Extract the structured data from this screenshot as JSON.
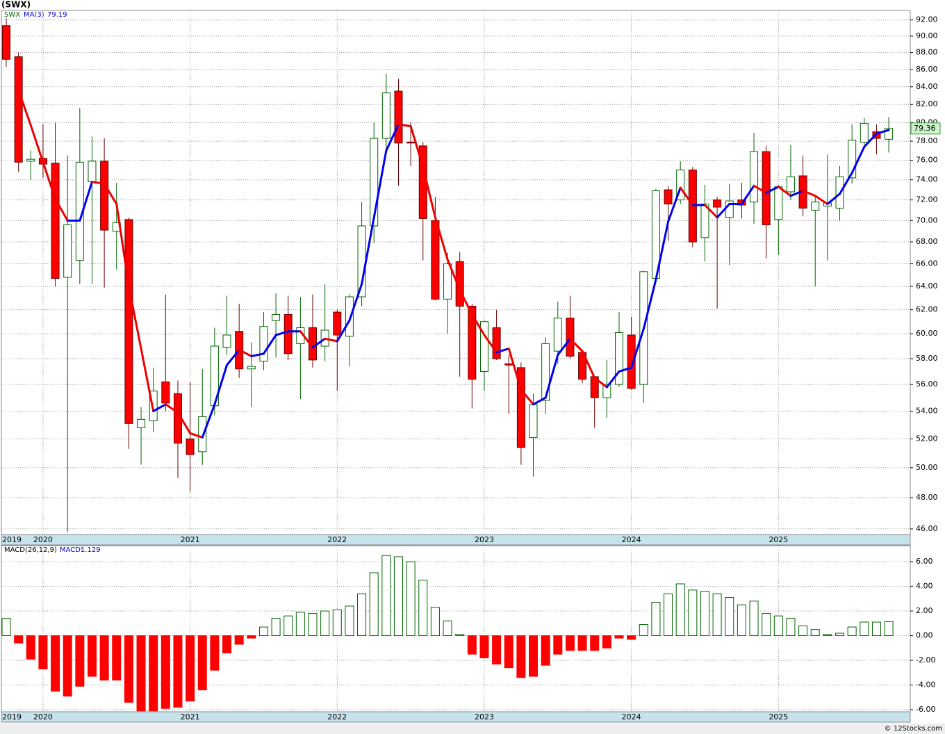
{
  "chart_data": [
    {
      "type": "candlestick",
      "title": "(SWX)",
      "categories": [
        "2019",
        null,
        null,
        "2020",
        null,
        null,
        null,
        null,
        null,
        null,
        null,
        null,
        null,
        null,
        null,
        "2021",
        null,
        null,
        null,
        null,
        null,
        null,
        null,
        null,
        null,
        null,
        null,
        "2022",
        null,
        null,
        null,
        null,
        null,
        null,
        null,
        null,
        null,
        null,
        null,
        "2023",
        null,
        null,
        null,
        null,
        null,
        null,
        null,
        null,
        null,
        null,
        null,
        "2024",
        null,
        null,
        null,
        null,
        null,
        null,
        null,
        null,
        null,
        null,
        null,
        "2025",
        null,
        null,
        null,
        null,
        null,
        null,
        null,
        null,
        null
      ],
      "series": [
        {
          "name": "SWX",
          "colors": {
            "up": "#006400",
            "down": "#ff0000"
          },
          "open": [
            91.3,
            87.5,
            75.9,
            76.2,
            75.7,
            64.8,
            66.3,
            73.8,
            75.9,
            69.0,
            70.1,
            52.8,
            53.3,
            56.2,
            55.3,
            52.0,
            51.1,
            54.4,
            58.9,
            60.2,
            57.2,
            57.8,
            61.1,
            61.6,
            59.2,
            60.5,
            59.0,
            61.8,
            59.8,
            63.1,
            69.5,
            78.3,
            83.5,
            77.9,
            77.5,
            70.0,
            62.9,
            66.2,
            62.3,
            57.0,
            60.5,
            57.6,
            57.3,
            52.1,
            54.8,
            58.6,
            61.3,
            58.5,
            56.6,
            55.0,
            56.0,
            59.9,
            56.0,
            64.7,
            73.0,
            72.0,
            75.0,
            68.4,
            72.0,
            70.3,
            72.0,
            71.8,
            76.9,
            70.1,
            72.8,
            74.4,
            71.0,
            71.4,
            71.2,
            74.2,
            77.9,
            79.0,
            78.2
          ],
          "high": [
            92.2,
            88.0,
            77.0,
            79.8,
            80.0,
            76.5,
            81.6,
            78.5,
            78.3,
            73.7,
            70.3,
            54.3,
            57.3,
            63.3,
            56.3,
            56.2,
            57.2,
            60.5,
            63.2,
            62.5,
            59.3,
            61.8,
            63.4,
            63.2,
            63.1,
            63.3,
            64.2,
            62.0,
            63.3,
            71.8,
            80.0,
            85.5,
            84.9,
            80.0,
            77.9,
            72.3,
            67.0,
            67.1,
            62.5,
            61.1,
            62.0,
            58.3,
            57.7,
            55.3,
            59.7,
            62.7,
            63.2,
            58.6,
            56.6,
            57.9,
            61.8,
            61.4,
            65.4,
            73.1,
            73.4,
            75.9,
            75.3,
            73.5,
            72.3,
            73.6,
            73.7,
            78.9,
            77.5,
            73.5,
            77.6,
            76.5,
            72.3,
            76.6,
            75.4,
            79.8,
            80.5,
            79.8,
            80.6
          ],
          "low": [
            86.3,
            74.8,
            74.0,
            74.2,
            64.0,
            45.8,
            64.2,
            64.2,
            63.9,
            65.5,
            51.3,
            50.2,
            52.5,
            54.0,
            49.3,
            48.4,
            50.2,
            53.7,
            58.3,
            56.5,
            54.3,
            57.1,
            58.1,
            57.9,
            54.9,
            57.3,
            57.8,
            55.5,
            57.4,
            62.3,
            67.9,
            77.2,
            73.4,
            75.4,
            66.3,
            62.8,
            60.0,
            56.6,
            54.2,
            55.5,
            57.9,
            53.8,
            50.2,
            49.4,
            53.8,
            57.6,
            58.0,
            56.1,
            52.8,
            53.5,
            55.8,
            55.6,
            54.6,
            64.6,
            68.1,
            71.6,
            67.5,
            66.2,
            62.1,
            65.9,
            70.2,
            69.7,
            66.5,
            66.8,
            72.0,
            70.4,
            64.0,
            66.3,
            70.0,
            73.6,
            77.6,
            76.6,
            76.8
          ],
          "close": [
            87.2,
            75.8,
            76.1,
            75.6,
            64.7,
            69.6,
            75.8,
            75.9,
            69.1,
            69.8,
            53.1,
            53.4,
            55.5,
            54.6,
            51.7,
            50.9,
            53.6,
            59.0,
            59.9,
            57.2,
            57.4,
            60.6,
            61.6,
            58.4,
            60.5,
            57.9,
            60.3,
            59.9,
            63.1,
            69.5,
            78.3,
            83.3,
            77.8,
            77.8,
            70.2,
            62.9,
            66.0,
            62.3,
            56.4,
            61.0,
            58.0,
            57.5,
            51.4,
            54.5,
            59.2,
            61.3,
            58.2,
            56.4,
            55.0,
            56.0,
            60.1,
            55.7,
            65.3,
            72.9,
            71.6,
            75.0,
            68.0,
            71.6,
            71.3,
            71.9,
            71.5,
            76.9,
            69.6,
            73.3,
            74.3,
            71.2,
            71.8,
            71.7,
            74.3,
            78.1,
            79.9,
            78.3,
            79.36
          ]
        },
        {
          "name": "MA(3)",
          "colors": {
            "up": "#0000ee",
            "down": "#ee0000"
          },
          "values": [
            null,
            83.6,
            79.7,
            75.8,
            72.1,
            70.0,
            70.0,
            73.8,
            73.6,
            71.6,
            64.0,
            58.8,
            54.0,
            54.5,
            53.9,
            52.4,
            52.1,
            54.5,
            57.5,
            58.7,
            58.2,
            58.4,
            59.9,
            60.2,
            60.2,
            58.9,
            59.6,
            59.4,
            61.1,
            64.2,
            70.3,
            77.0,
            79.8,
            79.6,
            75.3,
            70.3,
            66.4,
            63.7,
            61.6,
            59.9,
            58.5,
            58.8,
            55.6,
            54.5,
            55.0,
            58.3,
            59.6,
            58.6,
            56.5,
            55.8,
            57.0,
            57.3,
            60.4,
            64.6,
            69.9,
            73.2,
            71.5,
            71.5,
            70.3,
            71.6,
            71.6,
            73.4,
            72.7,
            73.3,
            72.4,
            72.9,
            72.4,
            71.6,
            72.6,
            74.7,
            77.4,
            78.8,
            79.19
          ]
        }
      ],
      "ylim": [
        45.65,
        93.2
      ],
      "log_scale": true,
      "grid": true,
      "yticks": [
        {
          "value": 46,
          "label": "46.00"
        },
        {
          "value": 48,
          "label": "48.00"
        },
        {
          "value": 50,
          "label": "50.00"
        },
        {
          "value": 52,
          "label": "52.00"
        },
        {
          "value": 54,
          "label": "54.00"
        },
        {
          "value": 56,
          "label": "56.00"
        },
        {
          "value": 58,
          "label": "58.00"
        },
        {
          "value": 60,
          "label": "60.00"
        },
        {
          "value": 62,
          "label": "62.00"
        },
        {
          "value": 64,
          "label": "64.00"
        },
        {
          "value": 66,
          "label": "66.00"
        },
        {
          "value": 68,
          "label": "68.00"
        },
        {
          "value": 70,
          "label": "70.00"
        },
        {
          "value": 72,
          "label": "72.00"
        },
        {
          "value": 74,
          "label": "74.00"
        },
        {
          "value": 76,
          "label": "76.00"
        },
        {
          "value": 78,
          "label": "78.00"
        },
        {
          "value": 80,
          "label": "80.00"
        },
        {
          "value": 82,
          "label": "82.00"
        },
        {
          "value": 84,
          "label": "84.00"
        },
        {
          "value": 86,
          "label": "86.00"
        },
        {
          "value": 88,
          "label": "88.00"
        },
        {
          "value": 90,
          "label": "90.00"
        },
        {
          "value": 92,
          "label": "92.00"
        }
      ]
    },
    {
      "type": "bar",
      "title": "MACD(26,12,9)",
      "series": [
        {
          "name": "MACD:",
          "colors": {
            "up": "#006400",
            "down": "#ff0000"
          },
          "values": [
            1.4,
            -0.6,
            -1.9,
            -2.7,
            -4.5,
            -4.9,
            -4.1,
            -3.3,
            -3.6,
            -3.6,
            -5.4,
            -6.1,
            -6.1,
            -5.9,
            -5.8,
            -5.3,
            -4.4,
            -2.8,
            -1.4,
            -0.7,
            -0.2,
            0.7,
            1.4,
            1.6,
            1.9,
            1.8,
            2.0,
            2.1,
            2.4,
            3.4,
            5.1,
            6.5,
            6.4,
            6.0,
            4.5,
            2.3,
            1.2,
            0.1,
            -1.5,
            -1.8,
            -2.3,
            -2.6,
            -3.4,
            -3.3,
            -2.4,
            -1.5,
            -1.2,
            -1.2,
            -1.2,
            -1.0,
            -0.2,
            -0.3,
            0.9,
            2.7,
            3.4,
            4.2,
            3.7,
            3.6,
            3.4,
            3.1,
            2.5,
            2.8,
            1.8,
            1.6,
            1.4,
            0.8,
            0.5,
            0.1,
            0.2,
            0.7,
            1.1,
            1.1,
            1.129
          ]
        }
      ],
      "ylim": [
        -6.17,
        7.3
      ],
      "grid": true,
      "yticks": [
        {
          "value": -6,
          "label": "-6.00"
        },
        {
          "value": -4,
          "label": "-4.00"
        },
        {
          "value": -2,
          "label": "-2.00"
        },
        {
          "value": 0,
          "label": "0.00"
        },
        {
          "value": 2,
          "label": "2.00"
        },
        {
          "value": 4,
          "label": "4.00"
        },
        {
          "value": 6,
          "label": "6.00"
        }
      ]
    }
  ],
  "footer": "© 12Stocks.com"
}
